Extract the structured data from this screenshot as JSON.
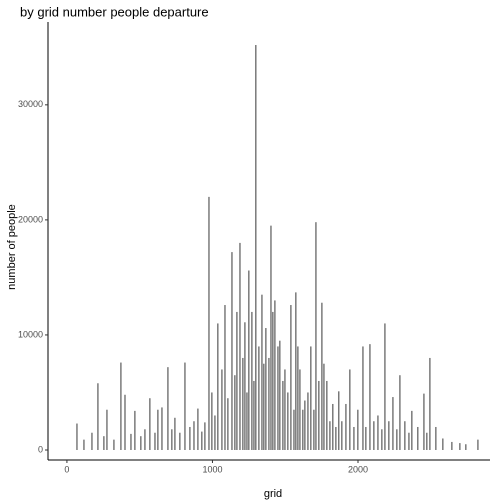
{
  "chart_data": {
    "type": "bar",
    "title": "by grid number people departure",
    "x_label": "grid",
    "y_label": "number of people",
    "color": "#595959",
    "xlim": [
      -130,
      2907
    ],
    "xticks": [
      0,
      1000,
      2000
    ],
    "ylim": [
      -870,
      37200
    ],
    "yticks": [
      0,
      10000,
      20000,
      30000
    ],
    "grid": false,
    "x": [
      69,
      117,
      172,
      213,
      254,
      275,
      323,
      371,
      399,
      440,
      467,
      508,
      536,
      570,
      605,
      625,
      653,
      694,
      721,
      742,
      776,
      811,
      845,
      873,
      900,
      927,
      948,
      976,
      996,
      1017,
      1037,
      1065,
      1086,
      1106,
      1134,
      1154,
      1168,
      1189,
      1209,
      1223,
      1237,
      1250,
      1271,
      1285,
      1298,
      1319,
      1340,
      1353,
      1367,
      1388,
      1402,
      1415,
      1429,
      1450,
      1463,
      1484,
      1498,
      1518,
      1539,
      1560,
      1573,
      1587,
      1601,
      1621,
      1635,
      1656,
      1676,
      1697,
      1711,
      1731,
      1752,
      1766,
      1786,
      1807,
      1827,
      1848,
      1868,
      1889,
      1917,
      1944,
      1972,
      1999,
      2034,
      2054,
      2082,
      2109,
      2137,
      2164,
      2185,
      2212,
      2240,
      2267,
      2288,
      2322,
      2350,
      2370,
      2411,
      2453,
      2473,
      2494,
      2535,
      2583,
      2645,
      2700,
      2741,
      2824
    ],
    "values": [
      2300,
      900,
      1500,
      5800,
      1200,
      3500,
      900,
      7600,
      4800,
      1400,
      3400,
      1200,
      1800,
      4500,
      1500,
      3500,
      3700,
      7200,
      1800,
      2800,
      1500,
      7600,
      2000,
      2500,
      3600,
      1600,
      2400,
      22000,
      5000,
      3000,
      11000,
      7000,
      12600,
      4500,
      17200,
      6500,
      12000,
      18000,
      8000,
      11100,
      5000,
      15600,
      12000,
      6000,
      35200,
      9000,
      13500,
      7500,
      10600,
      8000,
      19500,
      12000,
      13000,
      9000,
      9500,
      6000,
      7000,
      5000,
      12600,
      3500,
      13700,
      9000,
      7000,
      3500,
      4300,
      5000,
      9000,
      3500,
      19800,
      6000,
      12800,
      7500,
      6000,
      2500,
      4000,
      2000,
      5100,
      2500,
      4000,
      7000,
      2000,
      3500,
      9000,
      2000,
      9200,
      2500,
      3000,
      1800,
      11000,
      2500,
      4600,
      1800,
      6500,
      2500,
      1500,
      3400,
      2000,
      4900,
      1500,
      8000,
      2000,
      1000,
      700,
      600,
      500,
      900
    ]
  }
}
